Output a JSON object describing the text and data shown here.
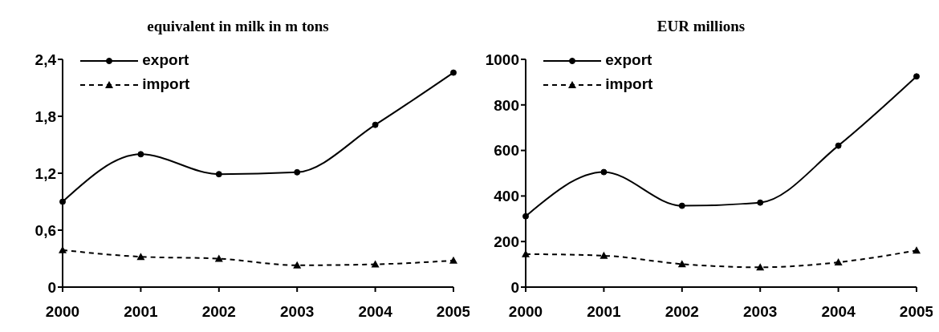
{
  "chart_data": [
    {
      "type": "line",
      "title": "equivalent in milk in m tons",
      "categories": [
        "2000",
        "2001",
        "2002",
        "2003",
        "2004",
        "2005"
      ],
      "ylim": [
        0,
        2.4
      ],
      "yticks": [
        {
          "value": 0,
          "label": "0"
        },
        {
          "value": 0.6,
          "label": "0,6"
        },
        {
          "value": 1.2,
          "label": "1,2"
        },
        {
          "value": 1.8,
          "label": "1,8"
        },
        {
          "value": 2.4,
          "label": "2,4"
        }
      ],
      "grid": false,
      "legend": "top left",
      "series": [
        {
          "name": "export",
          "color": "#000000",
          "marker": "circle",
          "line_style": "solid",
          "values": [
            0.9,
            1.4,
            1.19,
            1.21,
            1.71,
            2.26
          ]
        },
        {
          "name": "import",
          "color": "#000000",
          "marker": "triangle",
          "line_style": "dashed",
          "values": [
            0.39,
            0.32,
            0.3,
            0.23,
            0.24,
            0.28
          ]
        }
      ]
    },
    {
      "type": "line",
      "title": "EUR millions",
      "categories": [
        "2000",
        "2001",
        "2002",
        "2003",
        "2004",
        "2005"
      ],
      "ylim": [
        0,
        1000
      ],
      "yticks": [
        0,
        200,
        400,
        600,
        800,
        1000
      ],
      "grid": false,
      "legend": "top left",
      "series": [
        {
          "name": "export",
          "color": "#000000",
          "marker": "circle",
          "line_style": "solid",
          "values": [
            311,
            505,
            357,
            371,
            621,
            925
          ]
        },
        {
          "name": "import",
          "color": "#000000",
          "marker": "triangle",
          "line_style": "dashed",
          "values": [
            145,
            138,
            101,
            87,
            109,
            161
          ]
        }
      ]
    }
  ]
}
